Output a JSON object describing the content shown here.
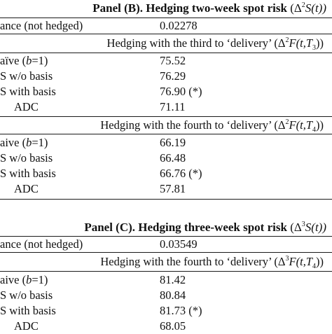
{
  "panel_b": {
    "title_bold": "Panel (B). Hedging two-week spot risk",
    "title_math": "(Δ",
    "title_sup": "2",
    "title_math2": "S(t))",
    "variance_label": "ance (not hedged)",
    "variance_value": "0.02278",
    "hedge1": {
      "text": "Hedging with the third to ‘delivery’ (Δ",
      "sup": "2",
      "text2": "F(t,T",
      "sub": "3",
      "text3": "))",
      "rows": [
        {
          "label": "aïve (b=1)",
          "value": "75.52"
        },
        {
          "label": "S w/o basis",
          "value": "76.29"
        },
        {
          "label": "S with basis",
          "value": "76.90 (*)"
        },
        {
          "label": "ADC",
          "value": "71.11"
        }
      ]
    },
    "hedge2": {
      "text": "Hedging with the fourth to ‘delivery’ (Δ",
      "sup": "2",
      "text2": "F(t,T",
      "sub": "4",
      "text3": "))",
      "rows": [
        {
          "label": "aive (b=1)",
          "value": "66.19"
        },
        {
          "label": "S w/o basis",
          "value": "66.48"
        },
        {
          "label": "S with basis",
          "value": "66.76 (*)"
        },
        {
          "label": "ADC",
          "value": "57.81"
        }
      ]
    }
  },
  "panel_c": {
    "title_bold": "Panel (C). Hedging three-week spot risk",
    "title_math": "(Δ",
    "title_sup": "3",
    "title_math2": "S(t))",
    "variance_label": "ance (not hedged)",
    "variance_value": "0.03549",
    "hedge1": {
      "text": "Hedging with the fourth to ‘delivery’ (Δ",
      "sup": "3",
      "text2": "F(t,T",
      "sub": "4",
      "text3": "))",
      "rows": [
        {
          "label": "aive (b=1)",
          "value": "81.42"
        },
        {
          "label": "S w/o basis",
          "value": "80.84"
        },
        {
          "label": "S with basis",
          "value": "81.73 (*)"
        },
        {
          "label": "ADC",
          "value": "68.05"
        }
      ]
    }
  }
}
